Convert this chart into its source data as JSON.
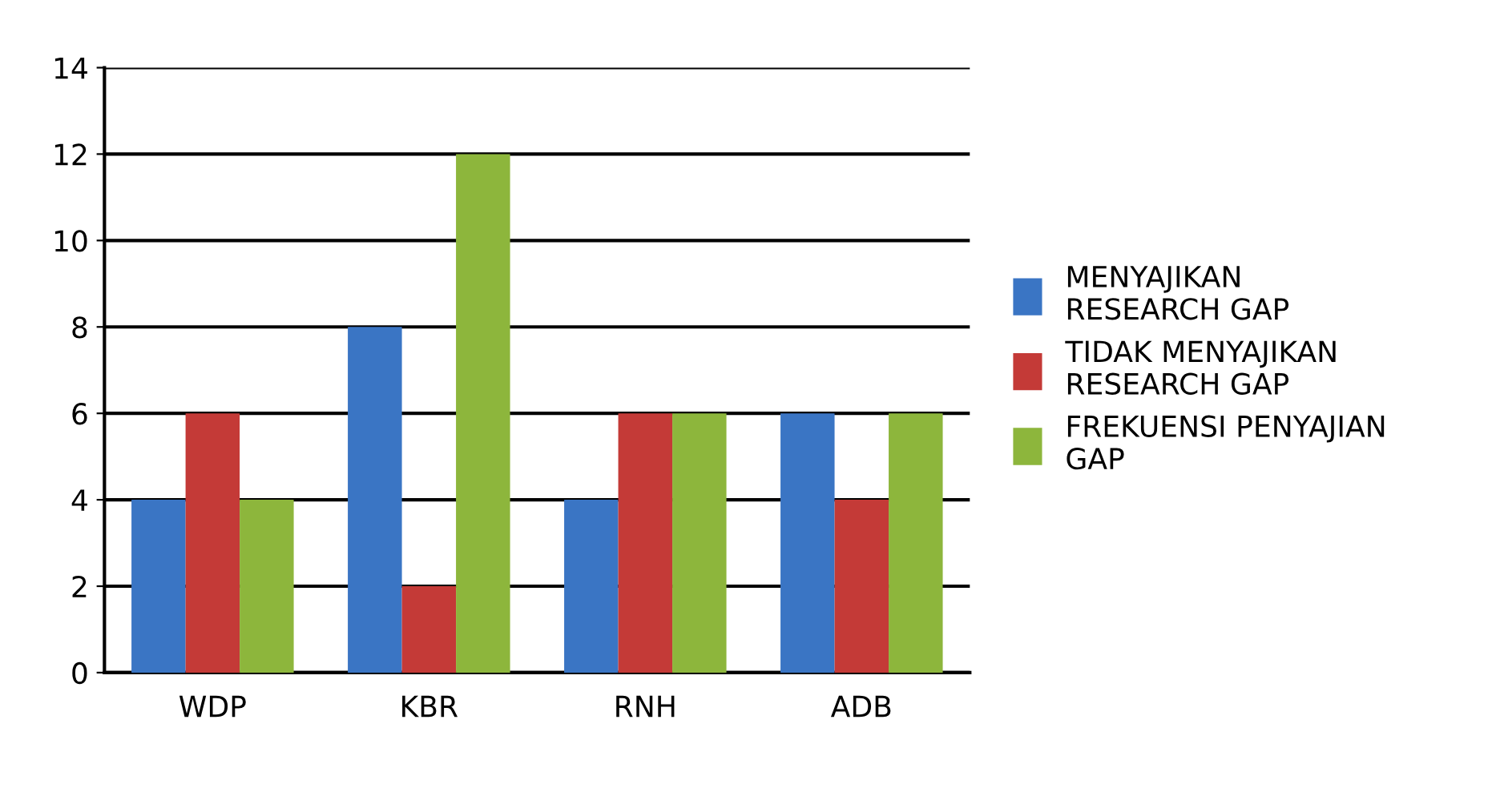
{
  "chart_data": {
    "type": "bar",
    "categories": [
      "WDP",
      "KBR",
      "RNH",
      "ADB"
    ],
    "series": [
      {
        "name": "MENYAJIKAN\nRESEARCH GAP",
        "color": "#3a75c4",
        "values": [
          4,
          8,
          4,
          6
        ]
      },
      {
        "name": "TIDAK MENYAJIKAN\nRESEARCH GAP",
        "color": "#c43a37",
        "values": [
          6,
          2,
          6,
          4
        ]
      },
      {
        "name": "FREKUENSI PENYAJIAN\nGAP",
        "color": "#8db63c",
        "values": [
          4,
          12,
          6,
          6
        ]
      }
    ],
    "ylim": [
      0,
      14
    ],
    "yticks": [
      0,
      2,
      4,
      6,
      8,
      10,
      12,
      14
    ],
    "grid": "y",
    "legend": "right"
  }
}
